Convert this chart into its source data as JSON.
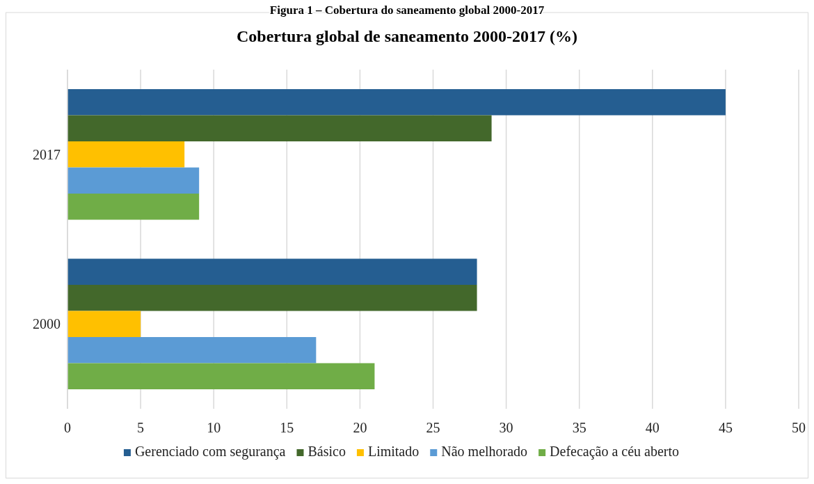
{
  "chart_data": {
    "type": "bar",
    "orientation": "horizontal",
    "title": "Cobertura global de saneamento 2000-2017 (%)",
    "annotations": [
      "Figura 1 – Cobertura do saneamento global 2000-2017"
    ],
    "categories": [
      "2017",
      "2000"
    ],
    "series": [
      {
        "name": "Gerenciado com segurança",
        "color": "#255e91",
        "values": [
          45,
          28
        ]
      },
      {
        "name": "Básico",
        "color": "#43682b",
        "values": [
          29,
          28
        ]
      },
      {
        "name": "Limitado",
        "color": "#ffc000",
        "values": [
          8,
          5
        ]
      },
      {
        "name": "Não melhorado",
        "color": "#5b9bd5",
        "values": [
          9,
          17
        ]
      },
      {
        "name": "Defecação a céu aberto",
        "color": "#70ad47",
        "values": [
          9,
          21
        ]
      }
    ],
    "xlim": [
      0,
      50
    ],
    "xticks": [
      0,
      5,
      10,
      15,
      20,
      25,
      30,
      35,
      40,
      45,
      50
    ],
    "grid": "x",
    "legend": "bottom"
  }
}
